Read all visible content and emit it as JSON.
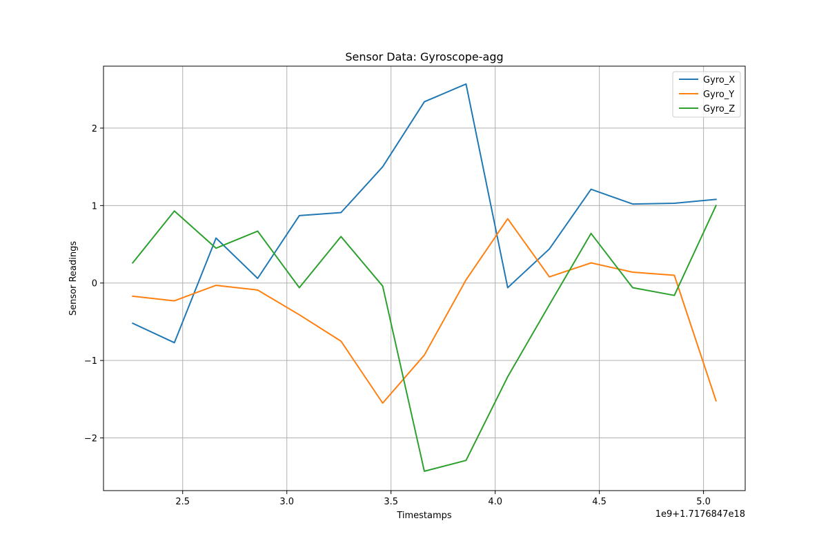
{
  "chart_data": {
    "type": "line",
    "title": "Sensor Data: Gyroscope-agg",
    "xlabel": "Timestamps",
    "ylabel": "Sensor Readings",
    "x_offset_label": "1e9+1.7176847e18",
    "xlim": [
      2.12,
      5.2
    ],
    "ylim": [
      -2.68,
      2.8
    ],
    "xticks": [
      2.5,
      3.0,
      3.5,
      4.0,
      4.5,
      5.0
    ],
    "xtick_labels": [
      "2.5",
      "3.0",
      "3.5",
      "4.0",
      "4.5",
      "5.0"
    ],
    "yticks": [
      -2,
      -1,
      0,
      1,
      2
    ],
    "ytick_labels": [
      "−2",
      "−1",
      "0",
      "1",
      "2"
    ],
    "grid": true,
    "legend_position": "top-right",
    "x": [
      2.26,
      2.46,
      2.66,
      2.86,
      3.06,
      3.26,
      3.46,
      3.66,
      3.86,
      4.06,
      4.26,
      4.46,
      4.66,
      4.86,
      5.06
    ],
    "series": [
      {
        "name": "Gyro_X",
        "color": "#1f77b4",
        "values": [
          -0.52,
          -0.77,
          0.58,
          0.06,
          0.87,
          0.91,
          1.5,
          2.34,
          2.57,
          -0.06,
          0.44,
          1.21,
          1.02,
          1.03,
          1.08
        ]
      },
      {
        "name": "Gyro_Y",
        "color": "#ff7f0e",
        "values": [
          -0.17,
          -0.23,
          -0.03,
          -0.09,
          -0.41,
          -0.75,
          -1.55,
          -0.93,
          0.04,
          0.83,
          0.08,
          0.26,
          0.14,
          0.1,
          -1.52
        ]
      },
      {
        "name": "Gyro_Z",
        "color": "#2ca02c",
        "values": [
          0.26,
          0.93,
          0.45,
          0.67,
          -0.06,
          0.6,
          -0.04,
          -2.43,
          -2.29,
          -1.21,
          -0.28,
          0.64,
          -0.06,
          -0.16,
          1.0
        ]
      }
    ]
  }
}
